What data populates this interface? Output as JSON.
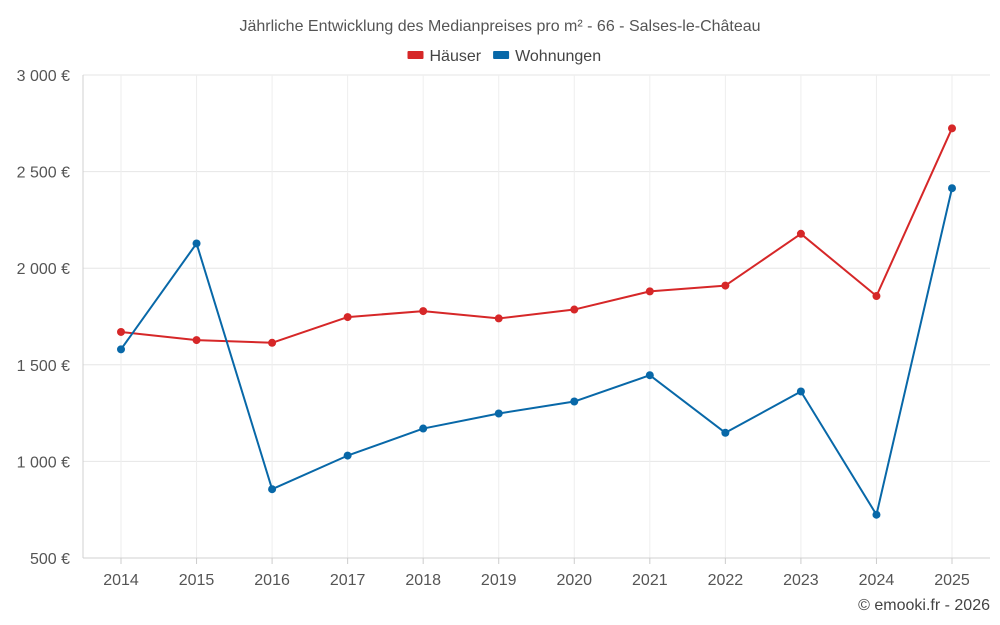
{
  "chart_data": {
    "type": "line",
    "title": "Jährliche Entwicklung des Medianpreises pro m² - 66 - Salses-le-Château",
    "categories": [
      "2014",
      "2015",
      "2016",
      "2017",
      "2018",
      "2019",
      "2020",
      "2021",
      "2022",
      "2023",
      "2024",
      "2025"
    ],
    "series": [
      {
        "name": "Häuser",
        "color": "#d62728",
        "values": [
          1670,
          1628,
          1614,
          1747,
          1778,
          1740,
          1786,
          1880,
          1910,
          2178,
          1856,
          2724
        ]
      },
      {
        "name": "Wohnungen",
        "color": "#0868a8",
        "values": [
          1580,
          2128,
          856,
          1030,
          1170,
          1248,
          1310,
          1446,
          1148,
          1362,
          724,
          2414
        ]
      }
    ],
    "ylim": [
      500,
      3000
    ],
    "yticks": [
      500,
      1000,
      1500,
      2000,
      2500,
      3000
    ],
    "ytick_labels": [
      "500 €",
      "1 000 €",
      "1 500 €",
      "2 000 €",
      "2 500 €",
      "3 000 €"
    ],
    "xlabel": "",
    "ylabel": "",
    "grid": true,
    "legend_position": "top-center"
  },
  "credit": "© emooki.fr - 2026"
}
